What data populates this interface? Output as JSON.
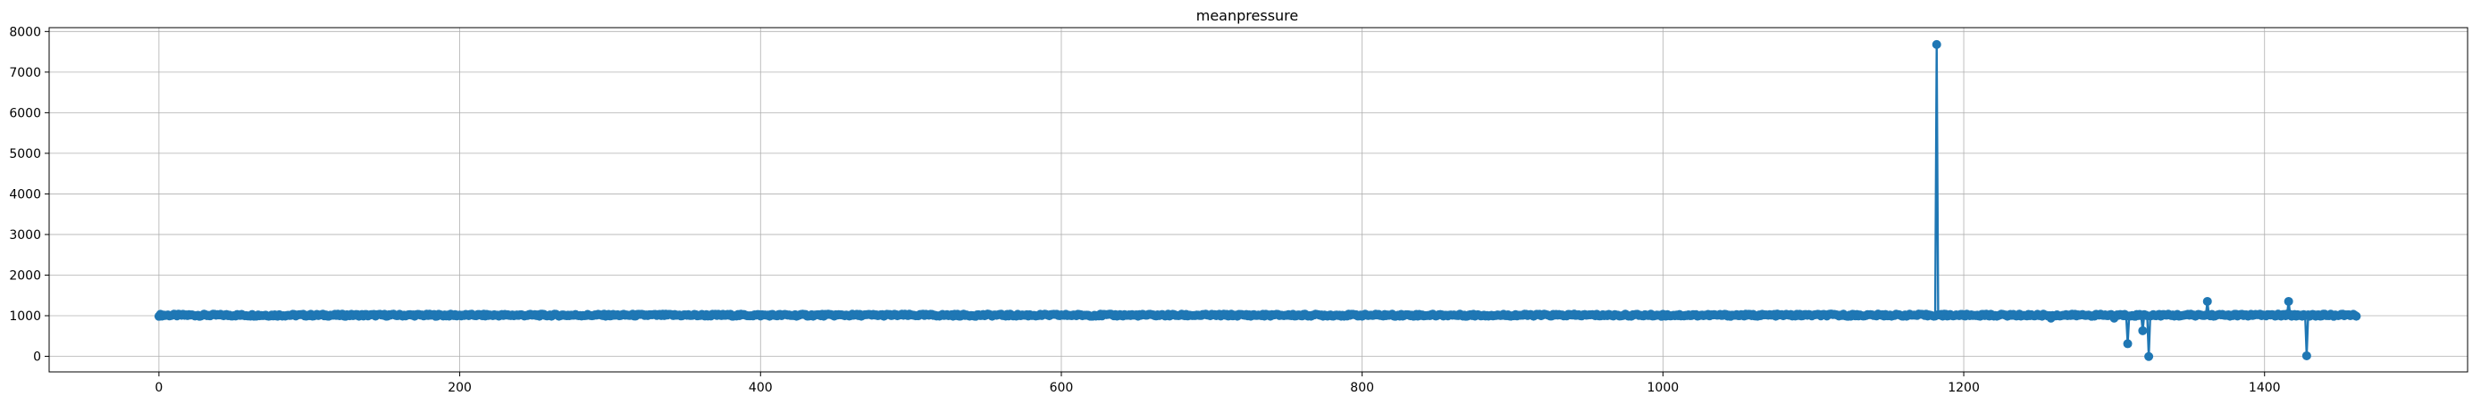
{
  "chart_data": {
    "type": "line",
    "title": "meanpressure",
    "xlabel": "",
    "ylabel": "",
    "xlim": [
      -73,
      1535
    ],
    "ylim": [
      -384,
      8095
    ],
    "x_ticks": [
      0,
      200,
      400,
      600,
      800,
      1000,
      1200,
      1400
    ],
    "y_ticks": [
      0,
      1000,
      2000,
      3000,
      4000,
      5000,
      6000,
      7000,
      8000
    ],
    "x_tick_labels": [
      "0",
      "200",
      "400",
      "600",
      "800",
      "1000",
      "1200",
      "1400"
    ],
    "y_tick_labels": [
      "0",
      "1000",
      "2000",
      "3000",
      "4000",
      "5000",
      "6000",
      "7000",
      "8000"
    ],
    "grid": true,
    "marker": "circle",
    "series_color": "#1f77b4",
    "x_range": [
      0,
      1461
    ],
    "baseline_value": 1010,
    "baseline_band": [
      985,
      1040
    ],
    "notable_points": [
      {
        "x": 1182,
        "y": 7680
      },
      {
        "x": 1258,
        "y": 940
      },
      {
        "x": 1300,
        "y": 940
      },
      {
        "x": 1309,
        "y": 310
      },
      {
        "x": 1319,
        "y": 630
      },
      {
        "x": 1323,
        "y": -5
      },
      {
        "x": 1362,
        "y": 1352
      },
      {
        "x": 1416,
        "y": 1352
      },
      {
        "x": 1428,
        "y": 12
      }
    ]
  }
}
